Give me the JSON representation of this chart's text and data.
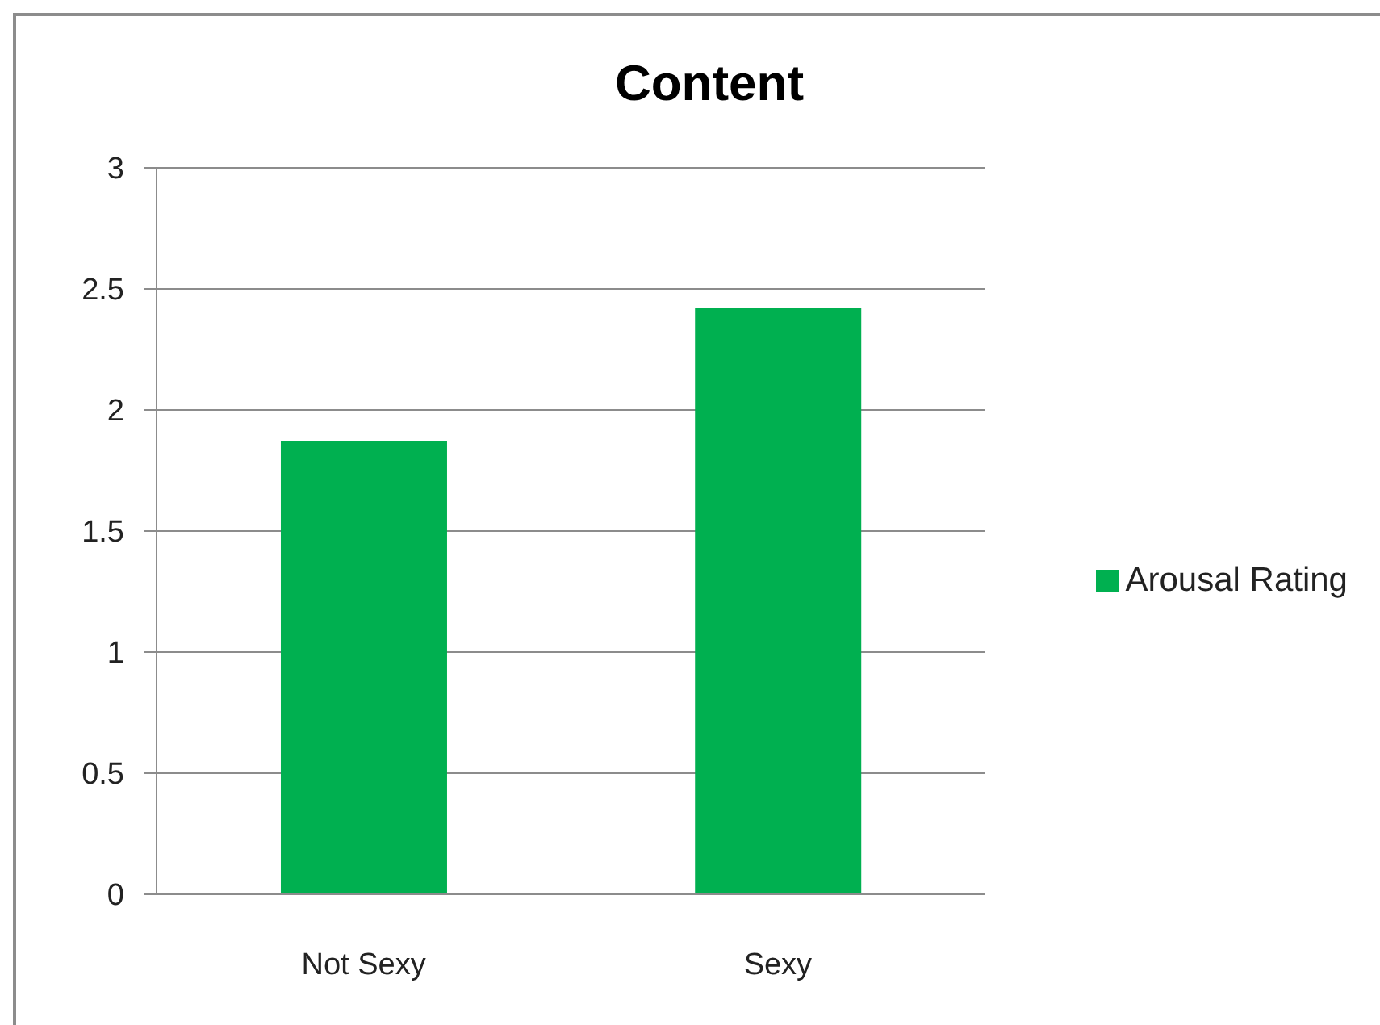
{
  "chart_data": {
    "type": "bar",
    "title": "Content",
    "categories": [
      "Not Sexy",
      "Sexy"
    ],
    "series": [
      {
        "name": "Arousal Rating",
        "color": "#00b050",
        "values": [
          1.87,
          2.42
        ]
      }
    ],
    "ylim": [
      0,
      3
    ],
    "yticks": [
      0,
      0.5,
      1,
      1.5,
      2,
      2.5,
      3
    ],
    "grid": "y",
    "legend": "right"
  }
}
